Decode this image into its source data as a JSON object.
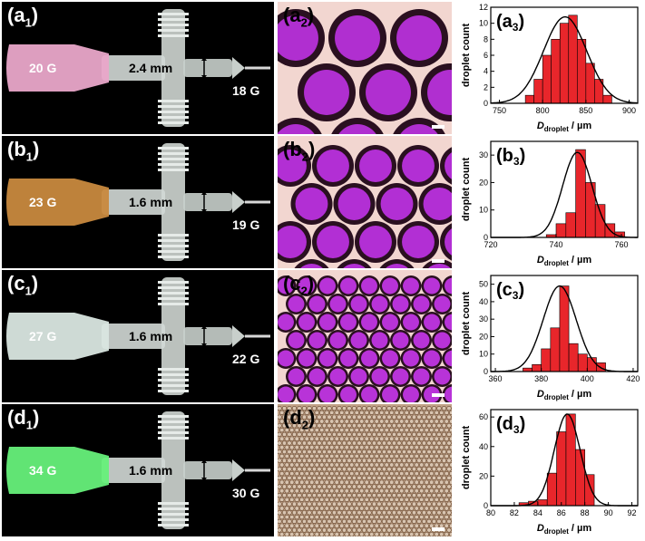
{
  "rows": [
    {
      "photo_label": "(a",
      "photo_sub": "1",
      "micro_label": "(a",
      "micro_sub": "2",
      "chart_label": "(a",
      "chart_sub": "3",
      "inlet_gauge": "20 G",
      "outlet_gauge": "18 G",
      "gap": "2.4 mm",
      "hub_color": "#e9a6c9"
    },
    {
      "photo_label": "(b",
      "photo_sub": "1",
      "micro_label": "(b",
      "micro_sub": "2",
      "chart_label": "(b",
      "chart_sub": "3",
      "inlet_gauge": "23 G",
      "outlet_gauge": "19 G",
      "gap": "1.6 mm",
      "hub_color": "#c8893e"
    },
    {
      "photo_label": "(c",
      "photo_sub": "1",
      "micro_label": "(c",
      "micro_sub": "2",
      "chart_label": "(c",
      "chart_sub": "3",
      "inlet_gauge": "27 G",
      "outlet_gauge": "22 G",
      "gap": "1.6 mm",
      "hub_color": "#d9e6e0"
    },
    {
      "photo_label": "(d",
      "photo_sub": "1",
      "micro_label": "(d",
      "micro_sub": "2",
      "chart_label": "(d",
      "chart_sub": "3",
      "inlet_gauge": "34 G",
      "outlet_gauge": "30 G",
      "gap": "1.6 mm",
      "hub_color": "#66f07a"
    }
  ],
  "chart_data": [
    {
      "type": "bar",
      "title": "",
      "xlabel_main": "D",
      "xlabel_sub": "droplet",
      "xlabel_unit": " / µm",
      "ylabel": "droplet count",
      "xlim": [
        740,
        910
      ],
      "ylim": [
        0,
        12
      ],
      "xticks": [
        750,
        800,
        850,
        900
      ],
      "yticks": [
        0,
        2,
        4,
        6,
        8,
        10,
        12
      ],
      "bin_width": 10,
      "bins": [
        780,
        790,
        800,
        810,
        820,
        830,
        840,
        850,
        860,
        870
      ],
      "values": [
        1,
        3,
        6,
        8,
        10,
        11,
        8,
        5,
        3,
        1
      ],
      "fit": {
        "mean": 826,
        "sd": 25,
        "peak": 10.8
      },
      "colors": {
        "bar": "#e8262b",
        "fit": "#000000"
      }
    },
    {
      "type": "bar",
      "title": "",
      "xlabel_main": "D",
      "xlabel_sub": "droplet",
      "xlabel_unit": " / µm",
      "ylabel": "droplet count",
      "xlim": [
        720,
        765
      ],
      "ylim": [
        0,
        35
      ],
      "xticks": [
        720,
        740,
        760
      ],
      "yticks": [
        0,
        10,
        20,
        30
      ],
      "bin_width": 3,
      "bins": [
        737,
        740,
        743,
        746,
        749,
        752,
        755,
        758
      ],
      "values": [
        1,
        5,
        9,
        32,
        20,
        12,
        5,
        2
      ],
      "fit": {
        "mean": 746.5,
        "sd": 4.5,
        "peak": 31
      },
      "colors": {
        "bar": "#e8262b",
        "fit": "#000000"
      }
    },
    {
      "type": "bar",
      "title": "",
      "xlabel_main": "D",
      "xlabel_sub": "droplet",
      "xlabel_unit": " / µm",
      "ylabel": "droplet count",
      "xlim": [
        358,
        422
      ],
      "ylim": [
        0,
        55
      ],
      "xticks": [
        360,
        380,
        400,
        420
      ],
      "yticks": [
        0,
        10,
        20,
        30,
        40,
        50
      ],
      "bin_width": 4,
      "bins": [
        372,
        376,
        380,
        384,
        388,
        392,
        396,
        400,
        404
      ],
      "values": [
        2,
        4,
        13,
        25,
        49,
        16,
        10,
        8,
        5
      ],
      "fit": {
        "mean": 388,
        "sd": 7.2,
        "peak": 49
      },
      "colors": {
        "bar": "#e8262b",
        "fit": "#000000"
      }
    },
    {
      "type": "bar",
      "title": "",
      "xlabel_main": "D",
      "xlabel_sub": "droplet",
      "xlabel_unit": " / µm",
      "ylabel": "droplet count",
      "xlim": [
        80,
        92.5
      ],
      "ylim": [
        0,
        65
      ],
      "xticks": [
        80,
        82,
        84,
        86,
        88,
        90,
        92
      ],
      "yticks": [
        0,
        20,
        40,
        60
      ],
      "bin_width": 0.8,
      "bins": [
        82.4,
        83.2,
        84.0,
        84.8,
        85.6,
        86.4,
        87.2,
        88.0
      ],
      "values": [
        2,
        3,
        4,
        22,
        50,
        62,
        38,
        21
      ],
      "fit": {
        "mean": 86.5,
        "sd": 1.1,
        "peak": 62
      },
      "colors": {
        "bar": "#e8262b",
        "fit": "#000000"
      }
    }
  ],
  "micro": [
    {
      "bg": "#f2d6d0",
      "drop": "#b02fd0",
      "rim": "#2a1020",
      "cols": 3,
      "rows": 3,
      "r": 32,
      "dx": 68,
      "dy": 60,
      "ox": 20,
      "oy": 8
    },
    {
      "bg": "#f2d6d0",
      "drop": "#b22fd4",
      "rim": "#2a1020",
      "cols": 5,
      "rows": 4,
      "r": 23,
      "dx": 47,
      "dy": 42,
      "ox": 14,
      "oy": 10
    },
    {
      "bg": "#f2d6d0",
      "drop": "#b833d8",
      "rim": "#2a1020",
      "cols": 10,
      "rows": 8,
      "r": 11.5,
      "dx": 23,
      "dy": 20,
      "ox": 9,
      "oy": 6
    },
    {
      "bg": "#c2a287",
      "drop": "#d8c4b0",
      "rim": "#5a3a22",
      "cols": 46,
      "rows": 30,
      "r": 2.6,
      "dx": 5.5,
      "dy": 4.8,
      "ox": 2,
      "oy": 2
    }
  ]
}
